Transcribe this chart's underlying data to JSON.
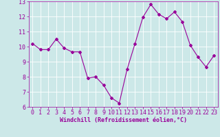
{
  "x": [
    0,
    1,
    2,
    3,
    4,
    5,
    6,
    7,
    8,
    9,
    10,
    11,
    12,
    13,
    14,
    15,
    16,
    17,
    18,
    19,
    20,
    21,
    22,
    23
  ],
  "y": [
    10.2,
    9.8,
    9.8,
    10.5,
    9.9,
    9.65,
    9.65,
    7.9,
    8.0,
    7.45,
    6.6,
    6.25,
    8.5,
    10.2,
    11.95,
    12.8,
    12.15,
    11.85,
    12.3,
    11.65,
    10.1,
    9.3,
    8.65,
    9.4
  ],
  "line_color": "#990099",
  "marker": "D",
  "marker_size": 2,
  "bg_color": "#cce8e8",
  "grid_color": "#ffffff",
  "xlabel": "Windchill (Refroidissement éolien,°C)",
  "xlabel_color": "#990099",
  "tick_color": "#990099",
  "ylim": [
    6,
    13
  ],
  "xlim": [
    -0.5,
    23.5
  ],
  "yticks": [
    6,
    7,
    8,
    9,
    10,
    11,
    12,
    13
  ],
  "xticks": [
    0,
    1,
    2,
    3,
    4,
    5,
    6,
    7,
    8,
    9,
    10,
    11,
    12,
    13,
    14,
    15,
    16,
    17,
    18,
    19,
    20,
    21,
    22,
    23
  ],
  "tick_fontsize": 6.0,
  "xlabel_fontsize": 6.0
}
